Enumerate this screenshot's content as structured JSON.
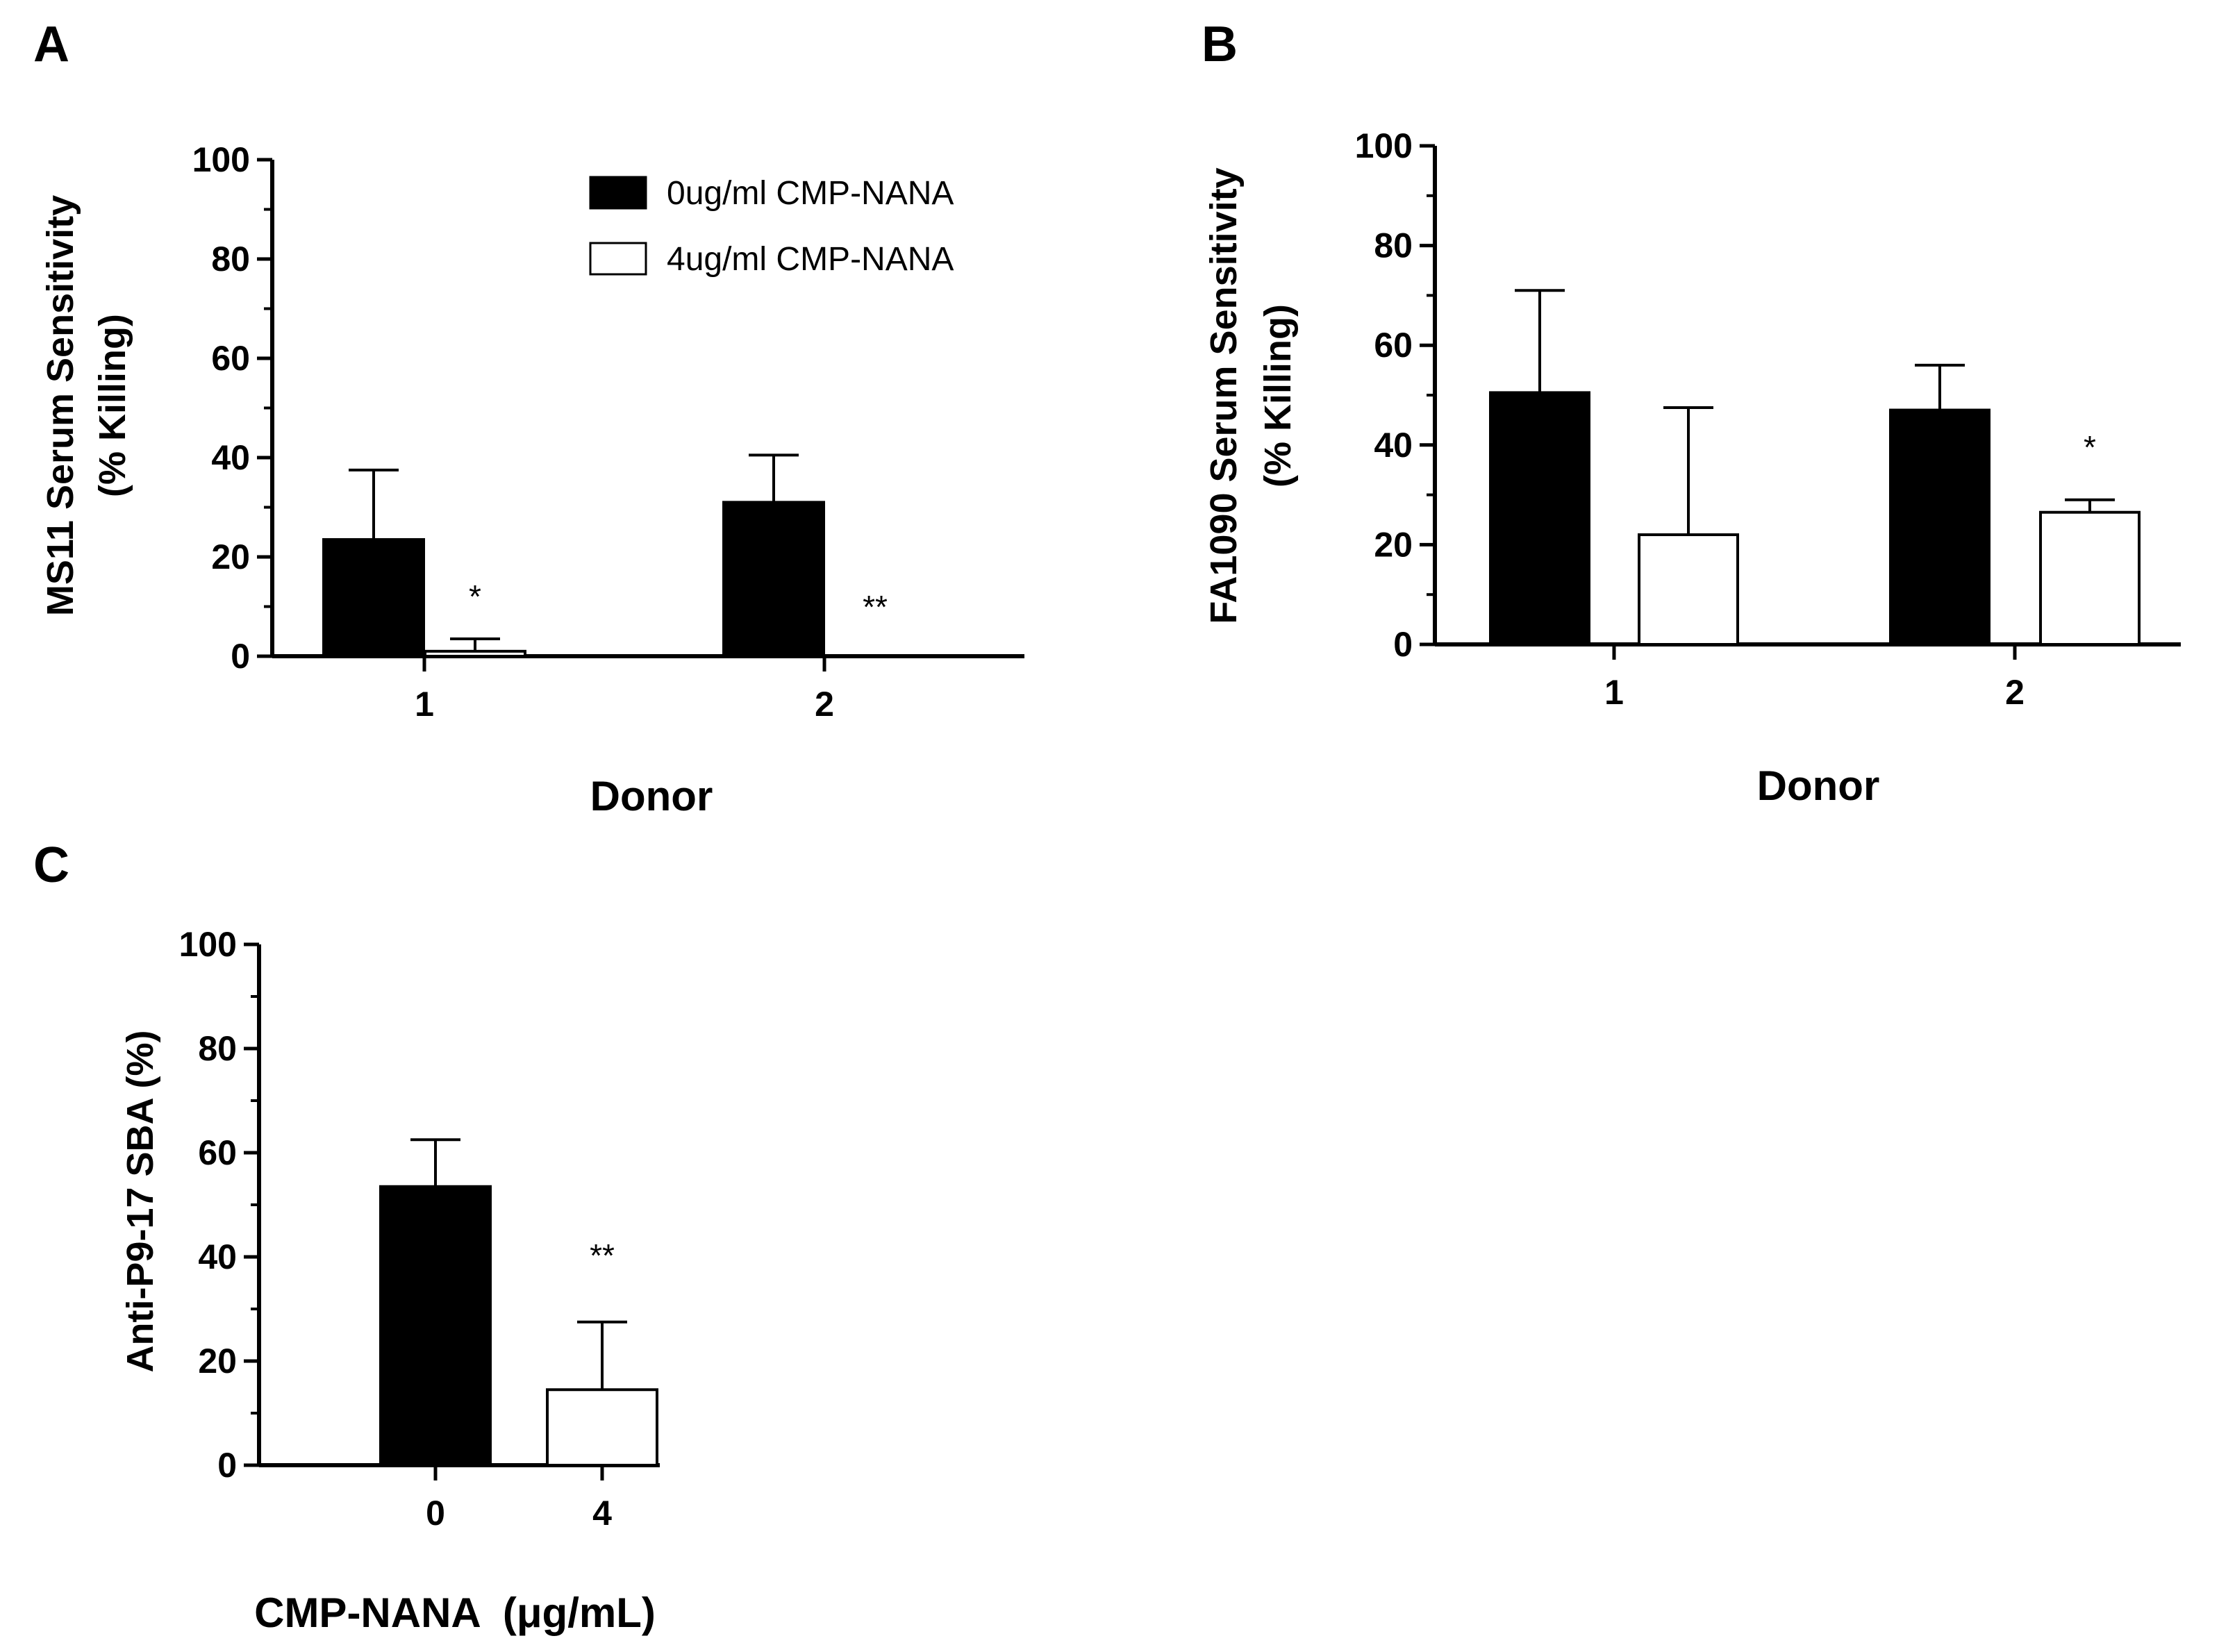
{
  "figure": {
    "panels": [
      "A",
      "B",
      "C"
    ]
  },
  "chart_data": [
    {
      "panel": "A",
      "type": "bar",
      "title": "",
      "xlabel": "Donor",
      "ylabel": [
        "MS11 Serum Sensitivity",
        "(% Killing)"
      ],
      "ylim": [
        0,
        100
      ],
      "yticks": [
        0,
        20,
        40,
        60,
        80,
        100
      ],
      "categories": [
        "1",
        "2"
      ],
      "series": [
        {
          "name": "0ug/ml CMP-NANA",
          "fill": "#000000",
          "values": [
            23.5,
            31
          ],
          "errors": [
            14,
            9.5
          ]
        },
        {
          "name": "4ug/ml CMP-NANA",
          "fill": "#ffffff",
          "values": [
            1,
            0
          ],
          "errors": [
            2.5,
            0
          ]
        }
      ],
      "annotations": [
        {
          "category": "1",
          "series": 1,
          "text": "*"
        },
        {
          "category": "2",
          "series": 1,
          "text": "**"
        }
      ],
      "legend": "top-right",
      "grid": false
    },
    {
      "panel": "B",
      "type": "bar",
      "title": "",
      "xlabel": "Donor",
      "ylabel": [
        "FA1090 Serum Sensitivity",
        "(% Killing)"
      ],
      "ylim": [
        0,
        100
      ],
      "yticks": [
        0,
        20,
        40,
        60,
        80,
        100
      ],
      "categories": [
        "1",
        "2"
      ],
      "series": [
        {
          "name": "0ug/ml CMP-NANA",
          "fill": "#000000",
          "values": [
            50.5,
            47
          ],
          "errors": [
            20.5,
            9
          ]
        },
        {
          "name": "4ug/ml CMP-NANA",
          "fill": "#ffffff",
          "values": [
            22,
            26.5
          ],
          "errors": [
            25.5,
            2.5
          ]
        }
      ],
      "annotations": [
        {
          "category": "2",
          "series": 1,
          "text": "*"
        }
      ],
      "grid": false
    },
    {
      "panel": "C",
      "type": "bar",
      "title": "",
      "xlabel": "CMP-NANA  (μg/mL)",
      "ylabel": [
        "Anti-P9-17 SBA (%)"
      ],
      "ylim": [
        0,
        100
      ],
      "yticks": [
        0,
        20,
        40,
        60,
        80,
        100
      ],
      "categories": [
        "0",
        "4"
      ],
      "series": [
        {
          "name": "CMP-NANA",
          "fills": [
            "#000000",
            "#ffffff"
          ],
          "values": [
            53.5,
            14.5
          ],
          "errors": [
            9,
            13
          ]
        }
      ],
      "annotations": [
        {
          "category": "4",
          "series": 0,
          "text": "**"
        }
      ],
      "grid": false
    }
  ]
}
